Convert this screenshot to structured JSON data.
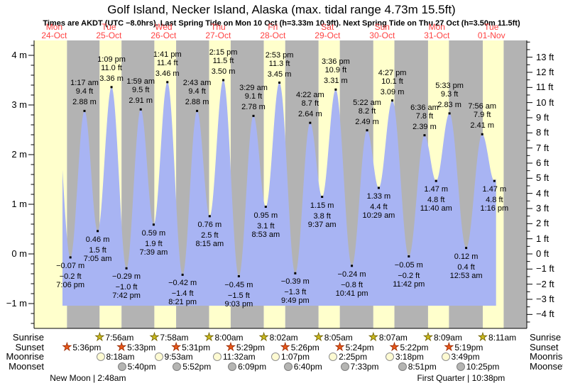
{
  "page": {
    "title": "Golf Island, Necker Island, Alaska (max. tidal range 4.73m 15.5ft)",
    "subtitle": "Times are AKDT (UTC −8.0hrs). Last Spring Tide on Mon 10 Oct (h=3.33m 10.9ft). Next Spring Tide on Thu 27 Oct (h=3.50m 11.5ft)"
  },
  "x_axis_days": [
    {
      "dow": "Mon",
      "date": "24-Oct",
      "t_noon": 12
    },
    {
      "dow": "Tue",
      "date": "25-Oct",
      "t_noon": 36
    },
    {
      "dow": "Wed",
      "date": "26-Oct",
      "t_noon": 60
    },
    {
      "dow": "Thu",
      "date": "27-Oct",
      "t_noon": 84
    },
    {
      "dow": "Fri",
      "date": "28-Oct",
      "t_noon": 108
    },
    {
      "dow": "Sat",
      "date": "29-Oct",
      "t_noon": 132
    },
    {
      "dow": "Sun",
      "date": "30-Oct",
      "t_noon": 156
    },
    {
      "dow": "Mon",
      "date": "31-Oct",
      "t_noon": 180
    },
    {
      "dow": "Tue",
      "date": "01-Nov",
      "t_noon": 204
    }
  ],
  "y_axis_left": {
    "unit": "m",
    "ticks": [
      {
        "v": 4,
        "label": "4 m"
      },
      {
        "v": 3,
        "label": "3 m"
      },
      {
        "v": 2,
        "label": "2 m"
      },
      {
        "v": 1,
        "label": "1 m"
      },
      {
        "v": 0,
        "label": "0 m"
      },
      {
        "v": -1,
        "label": "−1 m"
      }
    ]
  },
  "y_axis_right": {
    "unit": "ft",
    "ticks": [
      {
        "v": 13,
        "label": "13 ft"
      },
      {
        "v": 12,
        "label": "12 ft"
      },
      {
        "v": 11,
        "label": "11 ft"
      },
      {
        "v": 10,
        "label": "10 ft"
      },
      {
        "v": 9,
        "label": "9 ft"
      },
      {
        "v": 8,
        "label": "8 ft"
      },
      {
        "v": 7,
        "label": "7 ft"
      },
      {
        "v": 6,
        "label": "6 ft"
      },
      {
        "v": 5,
        "label": "5 ft"
      },
      {
        "v": 4,
        "label": "4 ft"
      },
      {
        "v": 3,
        "label": "3 ft"
      },
      {
        "v": 2,
        "label": "2 ft"
      },
      {
        "v": 1,
        "label": "1 ft"
      },
      {
        "v": 0,
        "label": "0 ft"
      },
      {
        "v": -1,
        "label": "−1 ft"
      },
      {
        "v": -2,
        "label": "−2 ft"
      },
      {
        "v": -3,
        "label": "−3 ft"
      },
      {
        "v": -4,
        "label": "−4 ft"
      }
    ]
  },
  "chart_data": {
    "type": "area",
    "title": "Golf Island, Necker Island, Alaska (max. tidal range 4.73m 15.5ft)",
    "series_name": "Tide height",
    "ylabel_left": "m",
    "ylabel_right": "ft",
    "ylim_m": [
      -1.5,
      4.3
    ],
    "xlim_hours_from_mon_0000": [
      3.15,
      219.5
    ],
    "extremes": [
      {
        "t": 19.1,
        "kind": "low",
        "time": "7:06 pm",
        "ft": "−0.2 ft",
        "m": "−0.07 m",
        "value_m": -0.07
      },
      {
        "t": 25.28,
        "kind": "high",
        "time": "1:17 am",
        "ft": "9.4 ft",
        "m": "2.88 m",
        "value_m": 2.88
      },
      {
        "t": 31.08,
        "kind": "low",
        "time": "7:05 am",
        "ft": "1.5 ft",
        "m": "0.46 m",
        "value_m": 0.46
      },
      {
        "t": 37.15,
        "kind": "high",
        "time": "1:09 pm",
        "ft": "11.0 ft",
        "m": "3.36 m",
        "value_m": 3.36
      },
      {
        "t": 43.7,
        "kind": "low",
        "time": "7:42 pm",
        "ft": "−1.0 ft",
        "m": "−0.29 m",
        "value_m": -0.29
      },
      {
        "t": 49.98,
        "kind": "high",
        "time": "1:59 am",
        "ft": "9.5 ft",
        "m": "2.91 m",
        "value_m": 2.91
      },
      {
        "t": 55.65,
        "kind": "low",
        "time": "7:39 am",
        "ft": "1.9 ft",
        "m": "0.59 m",
        "value_m": 0.59
      },
      {
        "t": 61.68,
        "kind": "high",
        "time": "1:41 pm",
        "ft": "11.4 ft",
        "m": "3.46 m",
        "value_m": 3.46
      },
      {
        "t": 68.35,
        "kind": "low",
        "time": "8:21 pm",
        "ft": "−1.4 ft",
        "m": "−0.42 m",
        "value_m": -0.42
      },
      {
        "t": 74.72,
        "kind": "high",
        "time": "2:43 am",
        "ft": "9.4 ft",
        "m": "2.88 m",
        "value_m": 2.88
      },
      {
        "t": 80.25,
        "kind": "low",
        "time": "8:15 am",
        "ft": "2.5 ft",
        "m": "0.76 m",
        "value_m": 0.76
      },
      {
        "t": 86.25,
        "kind": "high",
        "time": "2:15 pm",
        "ft": "11.5 ft",
        "m": "3.50 m",
        "value_m": 3.5
      },
      {
        "t": 93.05,
        "kind": "low",
        "time": "9:03 pm",
        "ft": "−1.5 ft",
        "m": "−0.45 m",
        "value_m": -0.45
      },
      {
        "t": 99.48,
        "kind": "high",
        "time": "3:29 am",
        "ft": "9.1 ft",
        "m": "2.78 m",
        "value_m": 2.78
      },
      {
        "t": 104.88,
        "kind": "low",
        "time": "8:53 am",
        "ft": "3.1 ft",
        "m": "0.95 m",
        "value_m": 0.95
      },
      {
        "t": 110.88,
        "kind": "high",
        "time": "2:53 pm",
        "ft": "11.3 ft",
        "m": "3.45 m",
        "value_m": 3.45
      },
      {
        "t": 117.82,
        "kind": "low",
        "time": "9:49 pm",
        "ft": "−1.3 ft",
        "m": "−0.39 m",
        "value_m": -0.39
      },
      {
        "t": 124.37,
        "kind": "high",
        "time": "4:22 am",
        "ft": "8.7 ft",
        "m": "2.64 m",
        "value_m": 2.64
      },
      {
        "t": 129.62,
        "kind": "low",
        "time": "9:37 am",
        "ft": "3.8 ft",
        "m": "1.15 m",
        "value_m": 1.15
      },
      {
        "t": 135.6,
        "kind": "high",
        "time": "3:36 pm",
        "ft": "10.9 ft",
        "m": "3.31 m",
        "value_m": 3.31
      },
      {
        "t": 142.68,
        "kind": "low",
        "time": "10:41 pm",
        "ft": "−0.8 ft",
        "m": "−0.24 m",
        "value_m": -0.24
      },
      {
        "t": 149.37,
        "kind": "high",
        "time": "5:22 am",
        "ft": "8.2 ft",
        "m": "2.49 m",
        "value_m": 2.49
      },
      {
        "t": 154.48,
        "kind": "low",
        "time": "10:29 am",
        "ft": "4.4 ft",
        "m": "1.33 m",
        "value_m": 1.33
      },
      {
        "t": 160.45,
        "kind": "high",
        "time": "4:27 pm",
        "ft": "10.1 ft",
        "m": "3.09 m",
        "value_m": 3.09
      },
      {
        "t": 167.7,
        "kind": "low",
        "time": "11:42 pm",
        "ft": "−0.2 ft",
        "m": "−0.05 m",
        "value_m": -0.05
      },
      {
        "t": 174.6,
        "kind": "high",
        "time": "6:36 am",
        "ft": "7.8 ft",
        "m": "2.39 m",
        "value_m": 2.39
      },
      {
        "t": 179.67,
        "kind": "low",
        "time": "11:40 am",
        "ft": "4.8 ft",
        "m": "1.47 m",
        "value_m": 1.47
      },
      {
        "t": 185.55,
        "kind": "high",
        "time": "5:33 pm",
        "ft": "9.3 ft",
        "m": "2.83 m",
        "value_m": 2.83
      },
      {
        "t": 192.88,
        "kind": "low",
        "time": "12:53 am",
        "ft": "0.4 ft",
        "m": "0.12 m",
        "value_m": 0.12
      },
      {
        "t": 199.93,
        "kind": "high",
        "time": "7:56 am",
        "ft": "7.9 ft",
        "m": "2.41 m",
        "value_m": 2.41
      },
      {
        "t": 205.27,
        "kind": "low",
        "time": "1:16 pm",
        "ft": "4.8 ft",
        "m": "1.47 m",
        "value_m": 1.47
      }
    ],
    "curve_head": {
      "t": 12.6,
      "value_m": 3.1
    },
    "curve_tail": {
      "t": 211.3,
      "value_m": 2.85
    },
    "data_t_range": [
      15.62,
      206.0
    ]
  },
  "astro": {
    "row_labels": [
      "Sunrise",
      "Sunset",
      "Moonrise",
      "Moonset"
    ],
    "sunrise": [
      {
        "t": 31.93,
        "time": "7:56am"
      },
      {
        "t": 55.97,
        "time": "7:58am"
      },
      {
        "t": 80.0,
        "time": "8:00am"
      },
      {
        "t": 104.03,
        "time": "8:02am"
      },
      {
        "t": 128.08,
        "time": "8:05am"
      },
      {
        "t": 152.12,
        "time": "8:07am"
      },
      {
        "t": 176.15,
        "time": "8:09am"
      },
      {
        "t": 200.18,
        "time": "8:11am"
      }
    ],
    "sunset": [
      {
        "t": 17.6,
        "time": "5:36pm"
      },
      {
        "t": 41.55,
        "time": "5:33pm"
      },
      {
        "t": 65.52,
        "time": "5:31pm"
      },
      {
        "t": 89.48,
        "time": "5:29pm"
      },
      {
        "t": 113.43,
        "time": "5:26pm"
      },
      {
        "t": 137.4,
        "time": "5:24pm"
      },
      {
        "t": 161.37,
        "time": "5:22pm"
      },
      {
        "t": 185.32,
        "time": "5:19pm"
      }
    ],
    "moonrise": [
      {
        "t": 32.3,
        "time": "8:18am"
      },
      {
        "t": 57.88,
        "time": "9:53am"
      },
      {
        "t": 83.53,
        "time": "11:32am"
      },
      {
        "t": 109.12,
        "time": "1:07pm"
      },
      {
        "t": 134.42,
        "time": "2:25pm"
      },
      {
        "t": 159.3,
        "time": "3:18pm"
      },
      {
        "t": 183.82,
        "time": "3:49pm"
      }
    ],
    "moonset": [
      {
        "t": 41.67,
        "time": "5:40pm"
      },
      {
        "t": 65.87,
        "time": "5:52pm"
      },
      {
        "t": 90.15,
        "time": "6:09pm"
      },
      {
        "t": 114.67,
        "time": "6:40pm"
      },
      {
        "t": 139.55,
        "time": "7:33pm"
      },
      {
        "t": 164.85,
        "time": "8:51pm"
      },
      {
        "t": 190.42,
        "time": "10:25pm"
      }
    ],
    "captions": [
      {
        "t": 26.8,
        "text": "New Moon | 2:48am"
      },
      {
        "t": 190.63,
        "text": "First Quarter | 10:38pm"
      }
    ]
  },
  "colors": {
    "background": "#ffffff",
    "day_band": "#ffffcc",
    "night_band": "#b3b3b3",
    "tide_fill": "#a8b4f3",
    "day_label_red": "#ff4242",
    "axis_black": "#000000",
    "sunrise_star_fill": "#c9b91e",
    "sunrise_star_outline": "#6f5f00",
    "sunset_star_fill": "#e8581a",
    "sunset_star_outline": "#992800",
    "moonrise_fill": "#fdfad2",
    "moonrise_outline": "#8f8f8f",
    "moonset_fill": "#b5b5b3",
    "moonset_outline": "#7e7e7e"
  }
}
